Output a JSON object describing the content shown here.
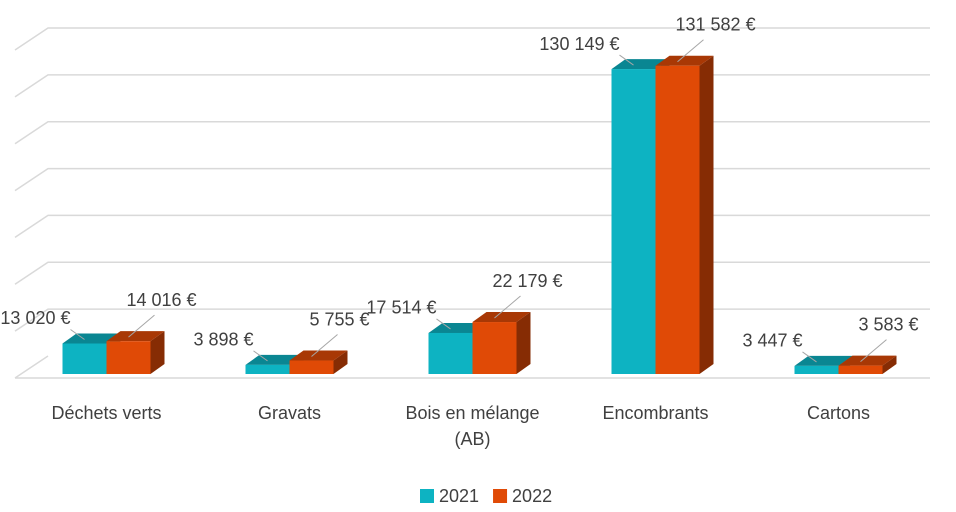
{
  "chart_data": {
    "type": "bar3d",
    "categories": [
      "Déchets verts",
      "Gravats",
      "Bois en mélange (AB)",
      "Encombrants",
      "Cartons"
    ],
    "series": [
      {
        "name": "2021",
        "color": "#0db3c2",
        "values": [
          13020,
          3898,
          17514,
          130149,
          3447
        ],
        "value_labels": [
          "13 020 €",
          "3 898 €",
          "17 514 €",
          "130 149 €",
          "3 447 €"
        ]
      },
      {
        "name": "2022",
        "color": "#e04a06",
        "values": [
          14016,
          5755,
          22179,
          131582,
          3583
        ],
        "value_labels": [
          "14 016 €",
          "5 755 €",
          "22 179 €",
          "131 582 €",
          "3 583 €"
        ]
      }
    ],
    "ylim": [
      0,
      140000
    ],
    "yticks": [
      0,
      20000,
      40000,
      60000,
      80000,
      100000,
      120000,
      140000
    ],
    "grid": true,
    "legend": "bottom"
  }
}
